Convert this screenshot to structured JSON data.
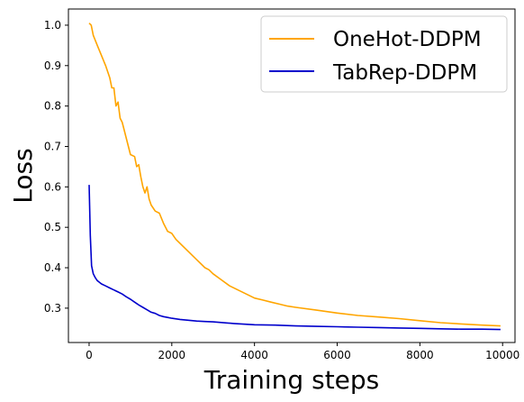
{
  "chart_data": {
    "type": "line",
    "xlabel": "Training steps",
    "ylabel": "Loss",
    "xlim": [
      -500,
      10300
    ],
    "ylim": [
      0.215,
      1.04
    ],
    "x_ticks": [
      0,
      2000,
      4000,
      6000,
      8000,
      10000
    ],
    "y_ticks": [
      0.3,
      0.4,
      0.5,
      0.6,
      0.7,
      0.8,
      0.9,
      1.0
    ],
    "x_tick_labels": [
      "0",
      "2000",
      "4000",
      "6000",
      "8000",
      "10000"
    ],
    "y_tick_labels": [
      "0.3",
      "0.4",
      "0.5",
      "0.6",
      "0.7",
      "0.8",
      "0.9",
      "1.0"
    ],
    "grid": false,
    "legend_position": "top-right",
    "series": [
      {
        "name": "OneHot-DDPM",
        "color": "#ffa500",
        "x": [
          0,
          50,
          100,
          200,
          300,
          400,
          500,
          550,
          600,
          650,
          700,
          750,
          800,
          850,
          900,
          1000,
          1100,
          1150,
          1200,
          1250,
          1300,
          1350,
          1400,
          1450,
          1500,
          1600,
          1700,
          1800,
          1900,
          2000,
          2100,
          2200,
          2300,
          2400,
          2500,
          2600,
          2700,
          2800,
          2900,
          3000,
          3200,
          3400,
          3600,
          3800,
          4000,
          4200,
          4400,
          4600,
          4800,
          5000,
          5500,
          6000,
          6500,
          7000,
          7500,
          8000,
          8500,
          9000,
          9500,
          9950
        ],
        "y": [
          1.005,
          1.0,
          0.975,
          0.95,
          0.925,
          0.9,
          0.87,
          0.845,
          0.845,
          0.8,
          0.81,
          0.77,
          0.76,
          0.74,
          0.72,
          0.68,
          0.675,
          0.65,
          0.655,
          0.625,
          0.6,
          0.585,
          0.6,
          0.57,
          0.555,
          0.54,
          0.535,
          0.51,
          0.49,
          0.485,
          0.47,
          0.46,
          0.45,
          0.44,
          0.43,
          0.42,
          0.41,
          0.4,
          0.395,
          0.385,
          0.37,
          0.355,
          0.345,
          0.335,
          0.325,
          0.32,
          0.315,
          0.31,
          0.305,
          0.302,
          0.295,
          0.288,
          0.282,
          0.278,
          0.274,
          0.269,
          0.264,
          0.261,
          0.258,
          0.256
        ]
      },
      {
        "name": "TabRep-DDPM",
        "color": "#0000cc",
        "x": [
          0,
          30,
          60,
          100,
          150,
          200,
          300,
          400,
          500,
          600,
          700,
          800,
          900,
          1000,
          1100,
          1200,
          1300,
          1400,
          1500,
          1600,
          1700,
          1800,
          1900,
          2000,
          2200,
          2400,
          2600,
          2800,
          3000,
          3500,
          4000,
          4500,
          5000,
          5500,
          6000,
          6500,
          7000,
          7500,
          8000,
          8500,
          9000,
          9500,
          9950
        ],
        "y": [
          0.605,
          0.48,
          0.405,
          0.385,
          0.375,
          0.368,
          0.36,
          0.355,
          0.35,
          0.345,
          0.34,
          0.335,
          0.328,
          0.322,
          0.315,
          0.308,
          0.302,
          0.296,
          0.29,
          0.287,
          0.282,
          0.279,
          0.277,
          0.275,
          0.272,
          0.27,
          0.268,
          0.267,
          0.266,
          0.262,
          0.259,
          0.258,
          0.256,
          0.255,
          0.254,
          0.253,
          0.252,
          0.251,
          0.25,
          0.249,
          0.248,
          0.248,
          0.247
        ]
      }
    ]
  }
}
